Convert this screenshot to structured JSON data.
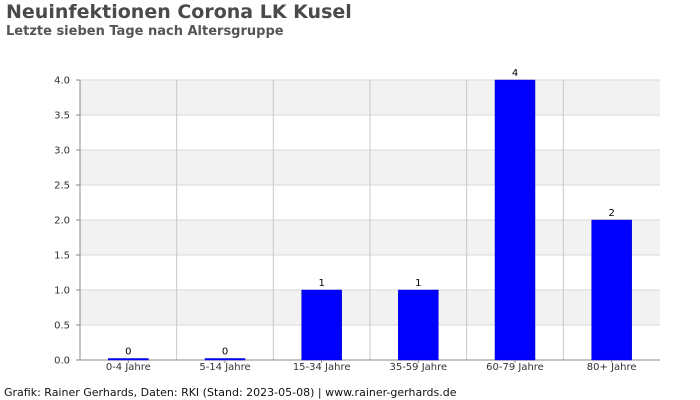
{
  "chart_data": {
    "type": "bar",
    "title": "Neuinfektionen Corona LK Kusel",
    "subtitle": "Letzte sieben Tage nach Altersgruppe",
    "categories": [
      "0-4 Jahre",
      "5-14 Jahre",
      "15-34 Jahre",
      "35-59 Jahre",
      "60-79 Jahre",
      "80+ Jahre"
    ],
    "values": [
      0,
      0,
      1,
      1,
      4,
      2
    ],
    "data_labels": [
      "0",
      "0",
      "1",
      "1",
      "4",
      "2"
    ],
    "xlabel": "",
    "ylabel": "",
    "ylim": [
      0,
      4
    ],
    "yticks": [
      "0.0",
      "0.5",
      "1.0",
      "1.5",
      "2.0",
      "2.5",
      "3.0",
      "3.5",
      "4.0"
    ],
    "grid": true,
    "bar_color": "#0000ff",
    "band_color": "#f2f2f2",
    "grid_color": "#d9d9d9"
  },
  "footer": "Grafik: Rainer Gerhards, Daten: RKI (Stand: 2023-05-08) | www.rainer-gerhards.de"
}
